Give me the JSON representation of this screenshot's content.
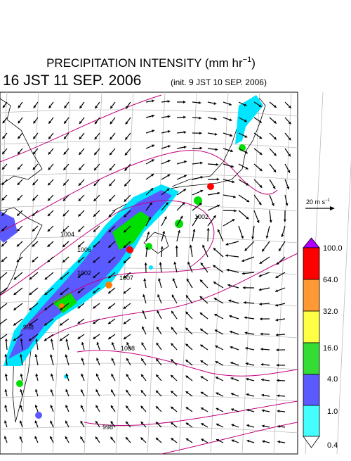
{
  "header": {
    "title": "PRECIPITATION INTENSITY (mm hr",
    "title_sup": "−1",
    "title_close": ")",
    "time": "16 JST 11 SEP. 2006",
    "init": "(init. 9 JST 10 SEP. 2006)"
  },
  "wind_scale": {
    "label": "20 m s",
    "sup": "−1"
  },
  "colorbar": {
    "labels": [
      "100.0",
      "64.0",
      "32.0",
      "16.0",
      "4.0",
      "1.0",
      "0.4"
    ]
  },
  "isobars": {
    "labels": [
      "1004",
      "1006",
      "1002",
      "1007",
      "1002",
      "998",
      "1008",
      "998"
    ]
  }
}
